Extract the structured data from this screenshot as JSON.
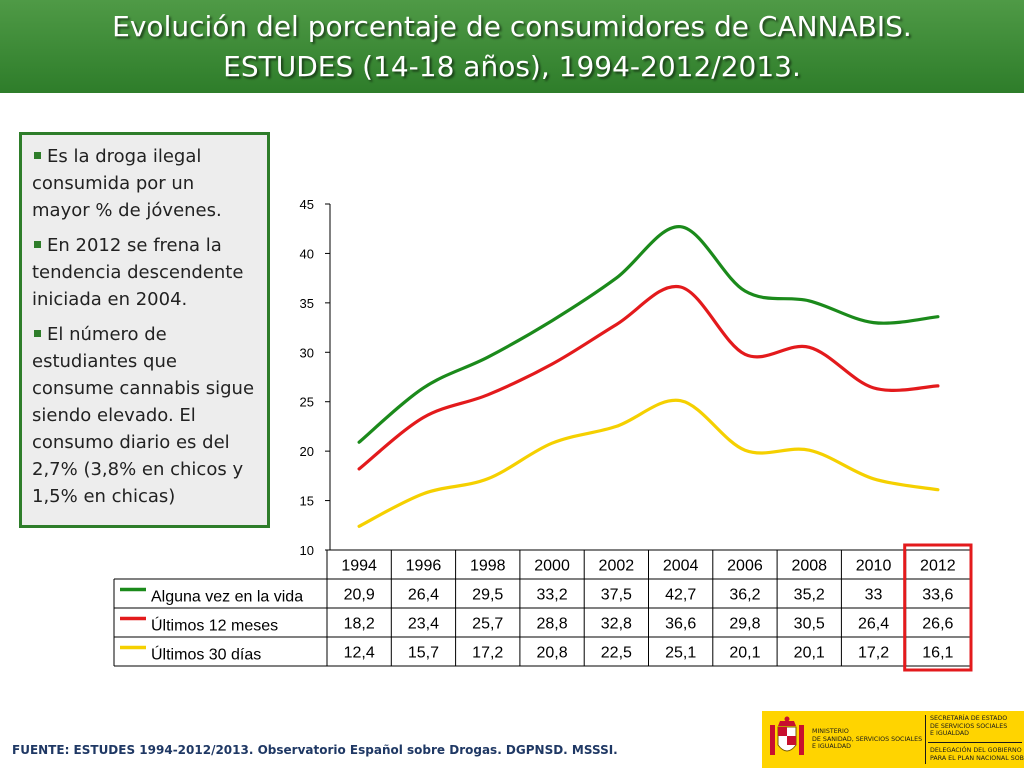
{
  "title": {
    "line1": "Evolución del porcentaje de consumidores de CANNABIS.",
    "line2": "ESTUDES (14-18 años), 1994-2012/2013."
  },
  "notes": [
    "Es la droga ilegal consumida por un mayor % de jóvenes.",
    "En 2012 se frena la tendencia descendente iniciada en 2004.",
    "El número de estudiantes que consume cannabis sigue siendo elevado. El consumo diario es del 2,7% (3,8% en chicos y 1,5% en chicas)"
  ],
  "chart_data": {
    "type": "line",
    "title": "",
    "xlabel": "",
    "ylabel": "",
    "categories": [
      "1994",
      "1996",
      "1998",
      "2000",
      "2002",
      "2004",
      "2006",
      "2008",
      "2010",
      "2012"
    ],
    "ylim": [
      10,
      45
    ],
    "yticks": [
      10,
      15,
      20,
      25,
      30,
      35,
      40,
      45
    ],
    "grid": false,
    "legend": "data table below chart",
    "highlight_category": "2012",
    "series": [
      {
        "name": "Alguna vez en la vida",
        "color": "#1b8a1b",
        "values": [
          20.9,
          26.4,
          29.5,
          33.2,
          37.5,
          42.7,
          36.2,
          35.2,
          33,
          33.6
        ],
        "labels": [
          "20,9",
          "26,4",
          "29,5",
          "33,2",
          "37,5",
          "42,7",
          "36,2",
          "35,2",
          "33",
          "33,6"
        ]
      },
      {
        "name": "Últimos 12 meses",
        "color": "#e31a1c",
        "values": [
          18.2,
          23.4,
          25.7,
          28.8,
          32.8,
          36.6,
          29.8,
          30.5,
          26.4,
          26.6
        ],
        "labels": [
          "18,2",
          "23,4",
          "25,7",
          "28,8",
          "32,8",
          "36,6",
          "29,8",
          "30,5",
          "26,4",
          "26,6"
        ]
      },
      {
        "name": "Últimos 30 días",
        "color": "#f5d000",
        "values": [
          12.4,
          15.7,
          17.2,
          20.8,
          22.5,
          25.1,
          20.1,
          20.1,
          17.2,
          16.1
        ],
        "labels": [
          "12,4",
          "15,7",
          "17,2",
          "20,8",
          "22,5",
          "25,1",
          "20,1",
          "20,1",
          "17,2",
          "16,1"
        ]
      }
    ]
  },
  "source": "FUENTE: ESTUDES 1994-2012/2013. Observatorio Español sobre Drogas. DGPNSD. MSSSI.",
  "logo": {
    "ministry": "MINISTERIO\nDE SANIDAD, SERVICIOS SOCIALES\nE IGUALDAD",
    "secretaria": "SECRETARÍA DE ESTADO\nDE SERVICIOS SOCIALES\nE IGUALDAD",
    "delegacion": "DELEGACIÓN DEL GOBIERNO\nPARA EL PLAN NACIONAL SOBRE DROGAS"
  }
}
